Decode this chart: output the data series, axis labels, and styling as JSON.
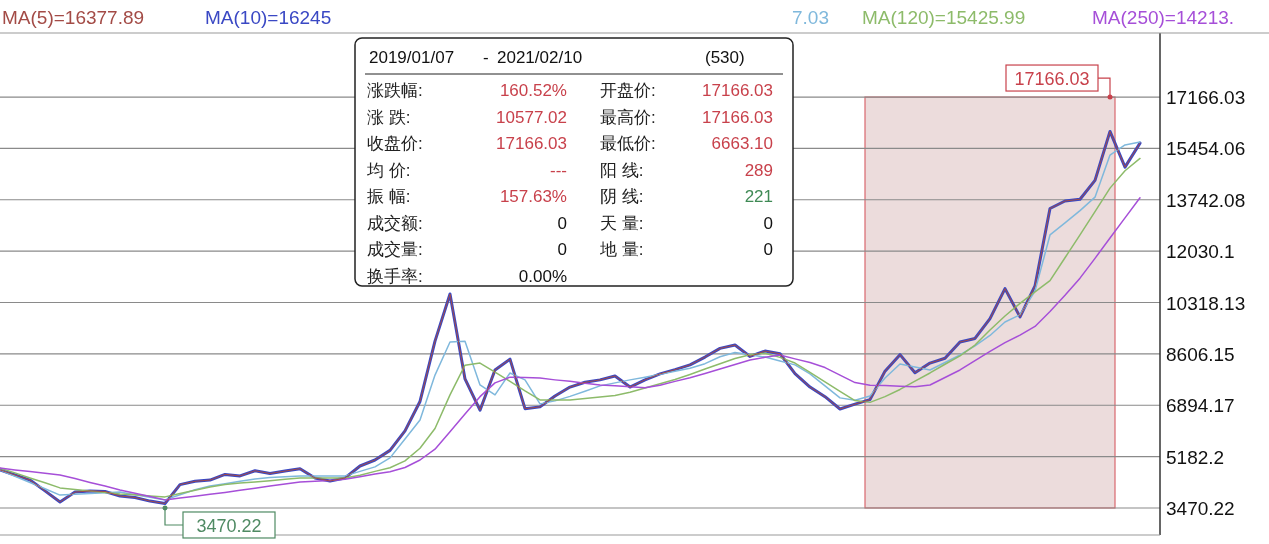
{
  "chart_data": [
    {
      "type": "line",
      "grid": "y",
      "categories": [
        null,
        null,
        null,
        null,
        null,
        null,
        null,
        null,
        null,
        null,
        null,
        null,
        null,
        null,
        null,
        null,
        null,
        null,
        null,
        null,
        null,
        null,
        null,
        null,
        null,
        null,
        null,
        null,
        null,
        null,
        null,
        null,
        null,
        null,
        null,
        null,
        null,
        null,
        null,
        null,
        null,
        null,
        null,
        null,
        null,
        null,
        null,
        null,
        null,
        null,
        null,
        null,
        null,
        null,
        null,
        null,
        null,
        null,
        null,
        null,
        null,
        null,
        null,
        null,
        null,
        null,
        null,
        null,
        null,
        null,
        null,
        null,
        null,
        null,
        null,
        null,
        null
      ],
      "ylim": [
        2570,
        19300
      ],
      "yticks": [
        17166.03,
        15454.06,
        13742.08,
        12030.1,
        10318.13,
        8606.15,
        6894.17,
        5182.2,
        3470.22
      ],
      "series": [
        {
          "name": "MA(10)=16245",
          "color": "#3a48c4",
          "values": [
            4740,
            4570,
            4400,
            4040,
            3670,
            4000,
            4040,
            4020,
            3870,
            3820,
            3700,
            3620,
            4250,
            4360,
            4400,
            4590,
            4540,
            4710,
            4620,
            4700,
            4780,
            4470,
            4370,
            4470,
            4870,
            5070,
            5390,
            6040,
            7020,
            9030,
            10600,
            7770,
            6730,
            8070,
            8430,
            6780,
            6840,
            7200,
            7500,
            7660,
            7740,
            7870,
            7500,
            7740,
            7940,
            8080,
            8240,
            8500,
            8790,
            8900,
            8520,
            8700,
            8610,
            7950,
            7500,
            7180,
            6770,
            6930,
            7080,
            8030,
            8580,
            7980,
            8300,
            8460,
            9000,
            9120,
            9780,
            10780,
            9840,
            10870,
            13450,
            13700,
            13760,
            14390,
            16020,
            14830,
            15630
          ]
        },
        {
          "name": "7.03",
          "color": "#7fb8dc",
          "values": [
            4740,
            4530,
            4320,
            4110,
            3900,
            3930,
            3950,
            3980,
            4000,
            3910,
            3830,
            3740,
            3910,
            4080,
            4200,
            4280,
            4360,
            4440,
            4490,
            4510,
            4540,
            4540,
            4540,
            4540,
            4690,
            4840,
            5140,
            5770,
            6400,
            7900,
            9000,
            9030,
            7570,
            7240,
            7970,
            7740,
            6940,
            7040,
            7190,
            7360,
            7540,
            7640,
            7740,
            7830,
            7930,
            8030,
            8130,
            8280,
            8510,
            8650,
            8580,
            8500,
            8370,
            8240,
            7940,
            7540,
            7140,
            7060,
            7200,
            7800,
            8270,
            8170,
            8070,
            8320,
            8570,
            8870,
            9220,
            9670,
            9910,
            10700,
            12570,
            12970,
            13380,
            13830,
            15230,
            15570,
            15670
          ]
        },
        {
          "name": "MA(120)=15425.99",
          "color": "#8dbb6a",
          "values": [
            4800,
            4640,
            4470,
            4310,
            4140,
            4090,
            4040,
            3990,
            3940,
            3910,
            3870,
            3840,
            3950,
            4060,
            4170,
            4250,
            4300,
            4340,
            4380,
            4430,
            4470,
            4470,
            4470,
            4470,
            4560,
            4690,
            4810,
            5040,
            5460,
            6120,
            7240,
            8230,
            8300,
            8000,
            7690,
            7370,
            7070,
            7070,
            7070,
            7120,
            7170,
            7220,
            7330,
            7470,
            7610,
            7750,
            7920,
            8100,
            8280,
            8450,
            8580,
            8630,
            8490,
            8300,
            7990,
            7670,
            7360,
            7050,
            6990,
            7180,
            7420,
            7700,
            7970,
            8260,
            8540,
            8900,
            9400,
            9870,
            10290,
            10670,
            11050,
            11810,
            12570,
            13350,
            14130,
            14710,
            15120
          ]
        },
        {
          "name": "MA(250)=14213.",
          "color": "#a64fd8",
          "values": [
            4800,
            4740,
            4690,
            4630,
            4570,
            4450,
            4320,
            4200,
            4070,
            3960,
            3850,
            3740,
            3800,
            3860,
            3930,
            3990,
            4060,
            4130,
            4200,
            4270,
            4340,
            4360,
            4390,
            4430,
            4510,
            4600,
            4680,
            4820,
            5070,
            5430,
            6010,
            6600,
            7180,
            7640,
            7830,
            7820,
            7800,
            7740,
            7690,
            7630,
            7570,
            7540,
            7510,
            7480,
            7560,
            7690,
            7810,
            7950,
            8100,
            8250,
            8400,
            8490,
            8570,
            8440,
            8320,
            8150,
            7900,
            7650,
            7560,
            7550,
            7530,
            7510,
            7570,
            7820,
            8070,
            8380,
            8690,
            8980,
            9230,
            9520,
            10020,
            10560,
            11130,
            11790,
            12470,
            13140,
            13810
          ]
        },
        {
          "name": "MA(5)=16377.89",
          "color": "#a34b46",
          "values": [
            4740,
            4570,
            4400,
            4040,
            3670,
            4000,
            4040,
            4020,
            3870,
            3820,
            3700,
            3620,
            4250,
            4360,
            4400,
            4590,
            4540,
            4710,
            4620,
            4700,
            4780,
            4470,
            4370,
            4470,
            4870,
            5070,
            5390,
            6040,
            7020,
            9030,
            10600,
            7770,
            6730,
            8070,
            8430,
            6780,
            6840,
            7200,
            7500,
            7660,
            7740,
            7870,
            7500,
            7740,
            7940,
            8080,
            8240,
            8500,
            8790,
            8900,
            8520,
            8700,
            8610,
            7950,
            7500,
            7180,
            6770,
            6930,
            7080,
            8030,
            8580,
            7980,
            8300,
            8460,
            9000,
            9120,
            9780,
            10780,
            9840,
            10870,
            13450,
            13700,
            13760,
            14390,
            16020,
            14830,
            15630
          ]
        }
      ],
      "annotations": [
        "17166.03",
        "3470.22"
      ]
    },
    {
      "type": "other",
      "annotations": [
        "2019/01/07",
        "-",
        "2021/02/10",
        "(530)",
        "涨跌幅:",
        "160.52%",
        "开盘价:",
        "17166.03",
        "涨 跌:",
        "10577.02",
        "最高价:",
        "17166.03",
        "收盘价:",
        "17166.03",
        "最低价:",
        "6663.10",
        "均 价:",
        "---",
        "阳 线:",
        "289",
        "振 幅:",
        "157.63%",
        "阴 线:",
        "221",
        "成交额:",
        "0",
        "天 量:",
        "0",
        "成交量:",
        "0",
        "地 量:",
        "0",
        "换手率:",
        "0.00%"
      ],
      "colors": [
        "#111111",
        "#111111",
        "#111111",
        "#111111",
        "#222222",
        "#c8414b",
        "#222222",
        "#c8414b",
        "#222222",
        "#c8414b",
        "#222222",
        "#c8414b",
        "#222222",
        "#c8414b",
        "#222222",
        "#c8414b",
        "#222222",
        "#c8414b",
        "#222222",
        "#c8414b",
        "#222222",
        "#c8414b",
        "#222222",
        "#3f8a55",
        "#222222",
        "#111111",
        "#222222",
        "#111111",
        "#222222",
        "#111111",
        "#222222",
        "#111111",
        "#222222",
        "#111111"
      ]
    }
  ]
}
